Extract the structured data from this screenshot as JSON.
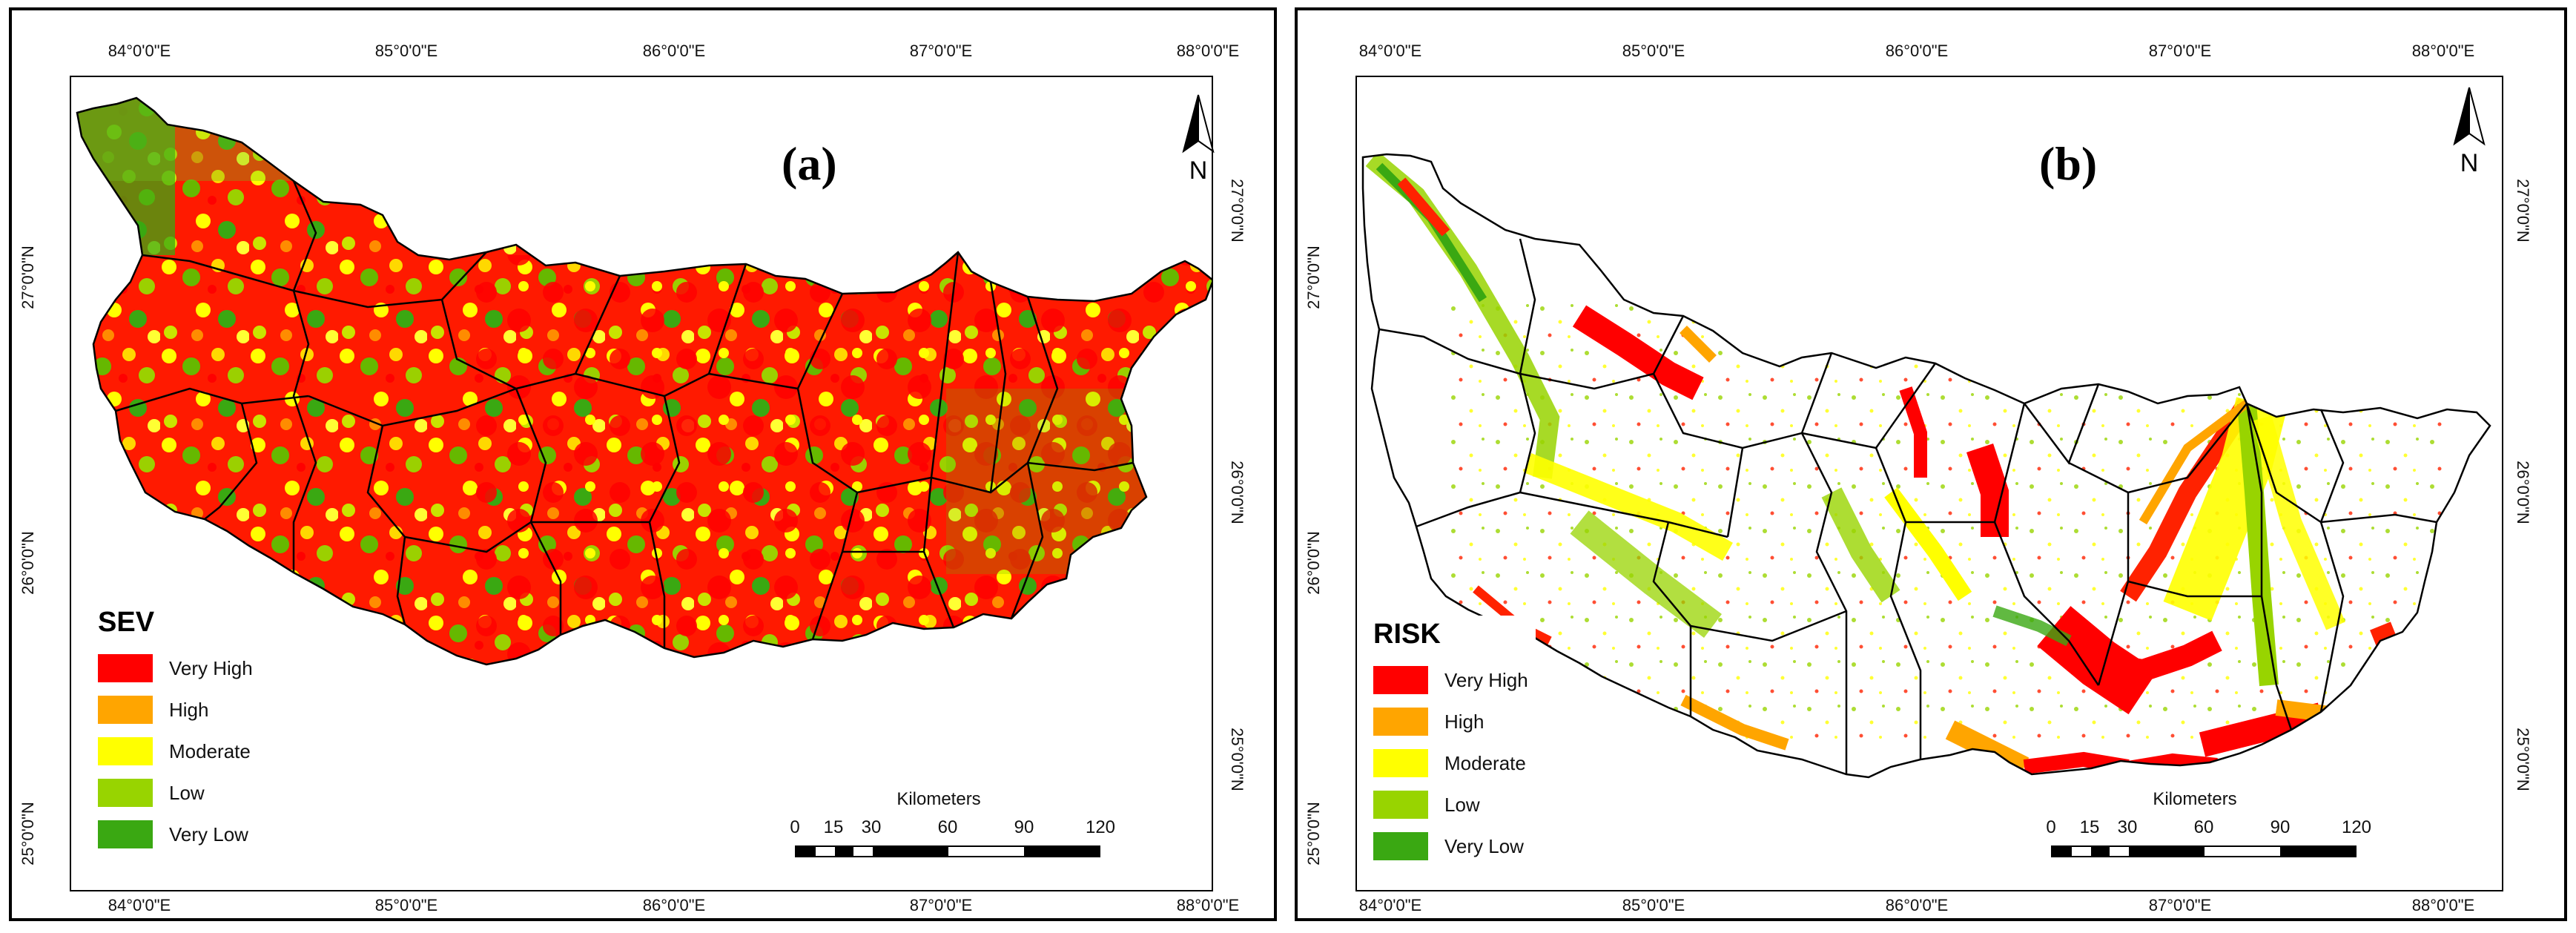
{
  "figure": {
    "panel_a": {
      "label": "(a)",
      "legend_title": "SEV",
      "north_letter": "N"
    },
    "panel_b": {
      "label": "(b)",
      "legend_title": "RISK",
      "north_letter": "N"
    },
    "legend_classes": [
      {
        "label": "Very High",
        "color": "#ff0000"
      },
      {
        "label": "High",
        "color": "#ffa500"
      },
      {
        "label": "Moderate",
        "color": "#ffff00"
      },
      {
        "label": "Low",
        "color": "#98d400"
      },
      {
        "label": "Very Low",
        "color": "#3aa812"
      }
    ],
    "longitude_labels": [
      "84°0'0\"E",
      "85°0'0\"E",
      "86°0'0\"E",
      "87°0'0\"E",
      "88°0'0\"E"
    ],
    "latitude_labels": [
      "25°0'0\"N",
      "26°0'0\"N",
      "27°0'0\"N"
    ],
    "scalebar": {
      "title": "Kilometers",
      "ticks": [
        "0",
        "15",
        "30",
        "60",
        "90",
        "120"
      ]
    },
    "colors": {
      "boundary": "#000000",
      "background": "#ffffff"
    }
  }
}
